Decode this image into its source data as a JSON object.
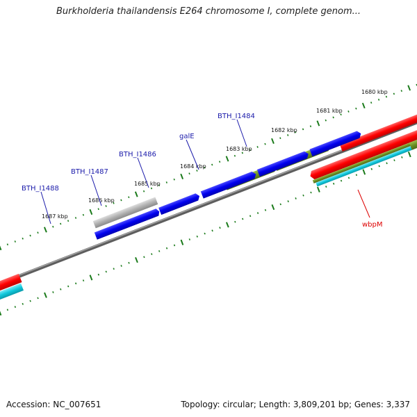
{
  "title": "Burkholderia thailandensis E264 chromosome I, complete genom...",
  "footer": {
    "accession": "Accession: NC_007651",
    "summary": "Topology: circular; Length: 3,809,201 bp; Genes: 3,337"
  },
  "ruler_labels": [
    "1680 kbp",
    "1681 kbp",
    "1682 kbp",
    "1683 kbp",
    "1684 kbp",
    "1685 kbp",
    "1686 kbp",
    "1687 kbp"
  ],
  "gene_labels": [
    {
      "text": "BTH_I1484",
      "color": "#1a1aaa"
    },
    {
      "text": "galE",
      "color": "#1a1aaa"
    },
    {
      "text": "BTH_I1486",
      "color": "#1a1aaa"
    },
    {
      "text": "BTH_I1487",
      "color": "#1a1aaa"
    },
    {
      "text": "BTH_I1488",
      "color": "#1a1aaa"
    },
    {
      "text": "wbpM",
      "color": "#dd0000"
    }
  ],
  "colors": {
    "forward_cds": "#0000ee",
    "reverse_cds": "#ff0000",
    "gene_olive": "#6b8e23",
    "gene_gray": "#aaaaaa",
    "gene_cyan": "#00bcd4",
    "backbone": "#7a7a7a",
    "ruler_tick": "#1a7a1a"
  }
}
